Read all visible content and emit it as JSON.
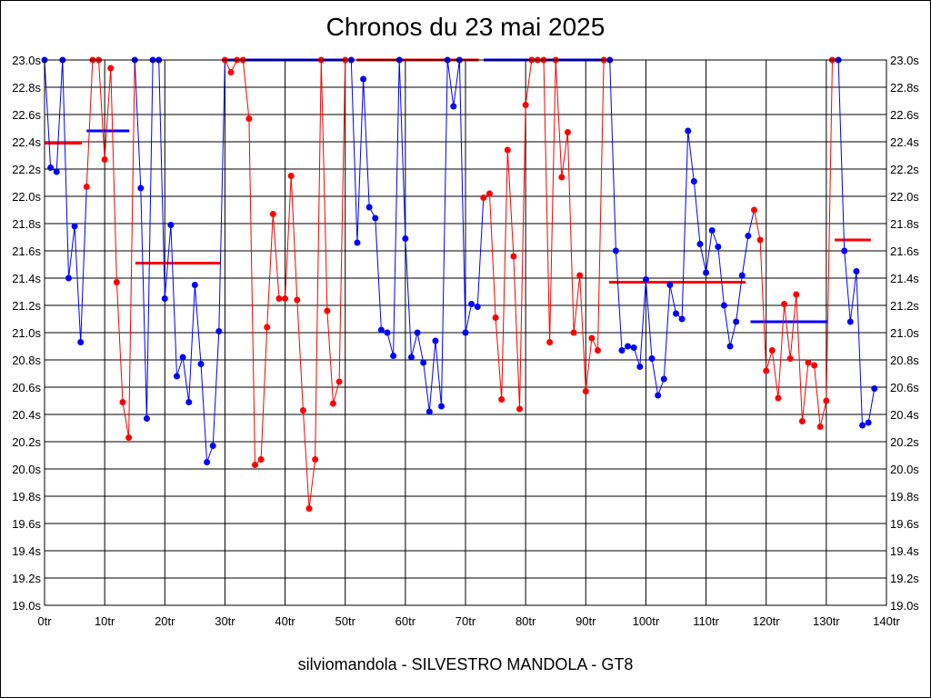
{
  "chart_data": {
    "type": "line",
    "title": "Chronos du 23 mai 2025",
    "footer": "silviomandola - SILVESTRO MANDOLA - GT8",
    "xlabel": "",
    "ylabel": "",
    "xlim": [
      0,
      140
    ],
    "ylim": [
      19.0,
      23.0
    ],
    "x_ticks": [
      "0tr",
      "10tr",
      "20tr",
      "30tr",
      "40tr",
      "50tr",
      "60tr",
      "70tr",
      "80tr",
      "90tr",
      "100tr",
      "110tr",
      "120tr",
      "130tr",
      "140tr"
    ],
    "y_ticks": [
      "19.0s",
      "19.2s",
      "19.4s",
      "19.6s",
      "19.8s",
      "20.0s",
      "20.2s",
      "20.4s",
      "20.6s",
      "20.8s",
      "21.0s",
      "21.2s",
      "21.4s",
      "21.6s",
      "21.8s",
      "22.0s",
      "22.2s",
      "22.4s",
      "22.6s",
      "22.8s",
      "23.0s"
    ],
    "grid": true,
    "colors": {
      "blue": "#0000ff",
      "red": "#ff0000"
    },
    "series": [
      {
        "color": "#0000ff",
        "points": [
          [
            0,
            23.0
          ],
          [
            1,
            22.21
          ],
          [
            2,
            22.18
          ],
          [
            3,
            23.0
          ],
          [
            4,
            21.4
          ],
          [
            5,
            21.78
          ],
          [
            6,
            20.93
          ]
        ]
      },
      {
        "color": "#ff0000",
        "points": [
          [
            7,
            22.07
          ],
          [
            8,
            23.0
          ],
          [
            9,
            23.0
          ],
          [
            10,
            22.27
          ],
          [
            11,
            22.94
          ],
          [
            12,
            21.37
          ],
          [
            13,
            20.49
          ],
          [
            14,
            20.23
          ]
        ]
      },
      {
        "color": "#0000ff",
        "points": [
          [
            15,
            23.0
          ],
          [
            16,
            22.06
          ],
          [
            17,
            20.37
          ],
          [
            18,
            23.0
          ],
          [
            19,
            23.0
          ],
          [
            20,
            21.25
          ],
          [
            21,
            21.79
          ],
          [
            22,
            20.68
          ],
          [
            23,
            20.82
          ],
          [
            24,
            20.49
          ],
          [
            25,
            21.35
          ],
          [
            26,
            20.77
          ],
          [
            27,
            20.05
          ],
          [
            28,
            20.17
          ],
          [
            29,
            21.01
          ]
        ]
      },
      {
        "color": "#ff0000",
        "points": [
          [
            30,
            23.0
          ],
          [
            31,
            22.91
          ],
          [
            32,
            23.0
          ],
          [
            33,
            23.0
          ],
          [
            34,
            22.57
          ],
          [
            35,
            20.03
          ],
          [
            36,
            20.07
          ],
          [
            37,
            21.04
          ],
          [
            38,
            21.87
          ],
          [
            39,
            21.25
          ],
          [
            40,
            21.25
          ],
          [
            41,
            22.15
          ],
          [
            42,
            21.24
          ],
          [
            43,
            20.43
          ],
          [
            44,
            19.71
          ],
          [
            45,
            20.07
          ],
          [
            46,
            23.0
          ],
          [
            47,
            21.16
          ],
          [
            48,
            20.48
          ],
          [
            49,
            20.64
          ],
          [
            50,
            23.0
          ]
        ]
      },
      {
        "color": "#0000ff",
        "points": [
          [
            51,
            23.0
          ],
          [
            52,
            21.66
          ],
          [
            53,
            22.86
          ],
          [
            54,
            21.92
          ],
          [
            55,
            21.84
          ],
          [
            56,
            21.02
          ],
          [
            57,
            21.0
          ],
          [
            58,
            20.83
          ],
          [
            59,
            23.0
          ],
          [
            60,
            21.69
          ],
          [
            61,
            20.82
          ],
          [
            62,
            21.0
          ],
          [
            63,
            20.78
          ],
          [
            64,
            20.42
          ],
          [
            65,
            20.94
          ],
          [
            66,
            20.46
          ],
          [
            67,
            23.0
          ],
          [
            68,
            22.66
          ],
          [
            69,
            23.0
          ],
          [
            70,
            21.0
          ],
          [
            71,
            21.21
          ],
          [
            72,
            21.19
          ]
        ]
      },
      {
        "color": "#ff0000",
        "points": [
          [
            73,
            21.99
          ],
          [
            74,
            22.02
          ],
          [
            75,
            21.11
          ],
          [
            76,
            20.51
          ],
          [
            77,
            22.34
          ],
          [
            78,
            21.56
          ],
          [
            79,
            20.44
          ],
          [
            80,
            22.67
          ],
          [
            81,
            23.0
          ],
          [
            82,
            23.0
          ],
          [
            83,
            23.0
          ],
          [
            84,
            20.93
          ],
          [
            85,
            23.0
          ],
          [
            86,
            22.14
          ],
          [
            87,
            22.47
          ],
          [
            88,
            21.0
          ],
          [
            89,
            21.42
          ],
          [
            90,
            20.57
          ],
          [
            91,
            20.96
          ],
          [
            92,
            20.87
          ],
          [
            93,
            23.0
          ]
        ]
      },
      {
        "color": "#0000ff",
        "points": [
          [
            94,
            23.0
          ],
          [
            95,
            21.6
          ],
          [
            96,
            20.87
          ],
          [
            97,
            20.9
          ],
          [
            98,
            20.89
          ],
          [
            99,
            20.75
          ],
          [
            100,
            21.39
          ],
          [
            101,
            20.81
          ],
          [
            102,
            20.54
          ],
          [
            103,
            20.66
          ],
          [
            104,
            21.35
          ],
          [
            105,
            21.14
          ],
          [
            106,
            21.1
          ],
          [
            107,
            22.48
          ],
          [
            108,
            22.11
          ],
          [
            109,
            21.65
          ],
          [
            110,
            21.44
          ],
          [
            111,
            21.75
          ],
          [
            112,
            21.63
          ],
          [
            113,
            21.2
          ],
          [
            114,
            20.9
          ],
          [
            115,
            21.08
          ],
          [
            116,
            21.42
          ],
          [
            117,
            21.71
          ]
        ]
      },
      {
        "color": "#ff0000",
        "points": [
          [
            118,
            21.9
          ],
          [
            119,
            21.68
          ],
          [
            120,
            20.72
          ],
          [
            121,
            20.87
          ],
          [
            122,
            20.52
          ],
          [
            123,
            21.21
          ],
          [
            124,
            20.81
          ],
          [
            125,
            21.28
          ],
          [
            126,
            20.35
          ],
          [
            127,
            20.78
          ],
          [
            128,
            20.76
          ],
          [
            129,
            20.31
          ],
          [
            130,
            20.5
          ],
          [
            131,
            23.0
          ]
        ]
      },
      {
        "color": "#0000ff",
        "points": [
          [
            132,
            23.0
          ],
          [
            133,
            21.6
          ],
          [
            134,
            21.08
          ],
          [
            135,
            21.45
          ],
          [
            136,
            20.32
          ],
          [
            137,
            20.34
          ],
          [
            138,
            20.59
          ]
        ]
      }
    ],
    "reference_lines": [
      {
        "color": "#ff0000",
        "x": [
          0,
          6.2
        ],
        "y": 22.39
      },
      {
        "color": "#0000ff",
        "x": [
          7,
          14.1
        ],
        "y": 22.48
      },
      {
        "color": "#ff0000",
        "x": [
          15.1,
          29.3
        ],
        "y": 21.51
      },
      {
        "color": "#0000ff",
        "x": [
          30,
          49.5
        ],
        "y": 23.0
      },
      {
        "color": "#ff0000",
        "x": [
          51.9,
          72.2
        ],
        "y": 23.0
      },
      {
        "color": "#0000ff",
        "x": [
          73,
          92.8
        ],
        "y": 23.0
      },
      {
        "color": "#ff0000",
        "x": [
          93.9,
          116.6
        ],
        "y": 21.37
      },
      {
        "color": "#0000ff",
        "x": [
          117.4,
          130.2
        ],
        "y": 21.08
      },
      {
        "color": "#ff0000",
        "x": [
          131.4,
          137.4
        ],
        "y": 21.68
      }
    ]
  }
}
